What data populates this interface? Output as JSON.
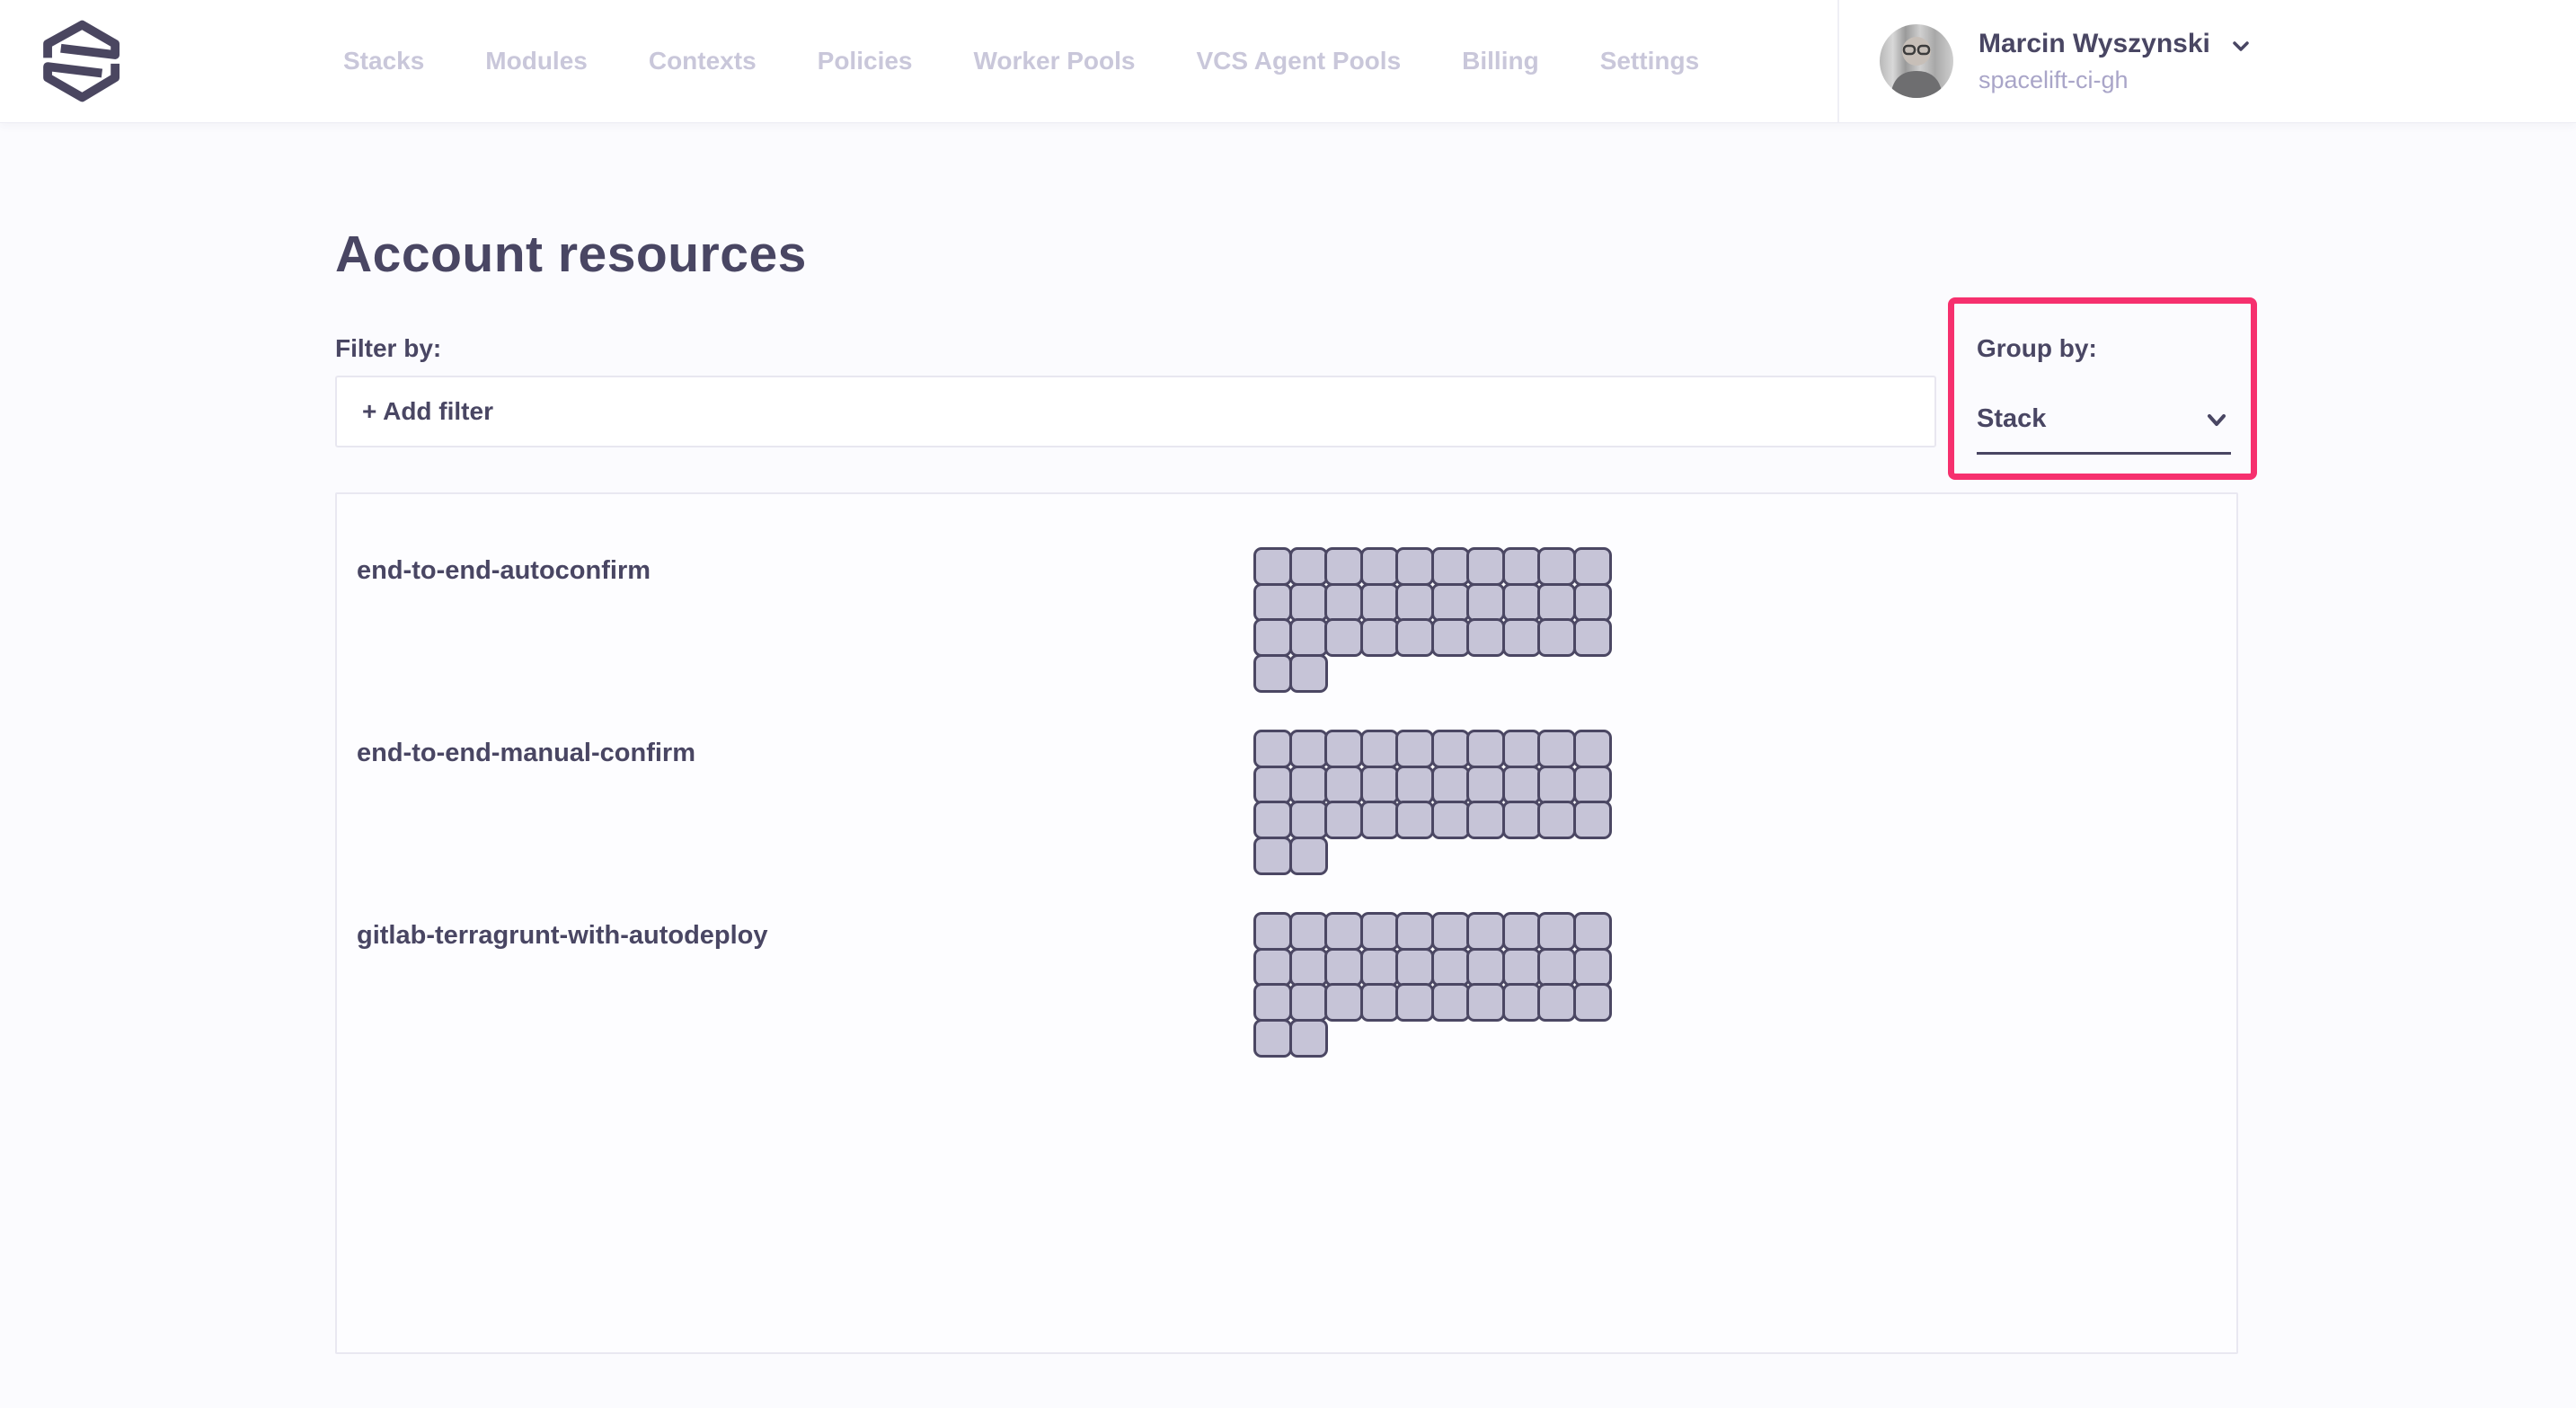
{
  "header": {
    "nav_items": [
      "Stacks",
      "Modules",
      "Contexts",
      "Policies",
      "Worker Pools",
      "VCS Agent Pools",
      "Billing",
      "Settings"
    ],
    "user": {
      "name": "Marcin Wyszynski",
      "account": "spacelift-ci-gh"
    }
  },
  "page": {
    "title": "Account resources",
    "filter_by_label": "Filter by:",
    "add_filter_label": "+ Add filter",
    "group_by": {
      "label": "Group by:",
      "selected": "Stack"
    }
  },
  "groups": {
    "columns_per_row": 10,
    "items": [
      {
        "name": "end-to-end-autoconfirm",
        "resource_count": 32
      },
      {
        "name": "end-to-end-manual-confirm",
        "resource_count": 32
      },
      {
        "name": "gitlab-terragrunt-with-autodeploy",
        "resource_count": 32
      }
    ]
  },
  "annotation": {
    "shape": "rectangle",
    "color": "#F6306E",
    "highlights": "group-by-dropdown"
  },
  "colors": {
    "text_dark": "#494663",
    "nav_muted": "#C9C7DA",
    "account_muted": "#A9A5C8",
    "tile_fill": "#C6C4D7",
    "tile_border": "#4B4763",
    "annotation_pink": "#F6306E",
    "logo": "#4A4660"
  }
}
